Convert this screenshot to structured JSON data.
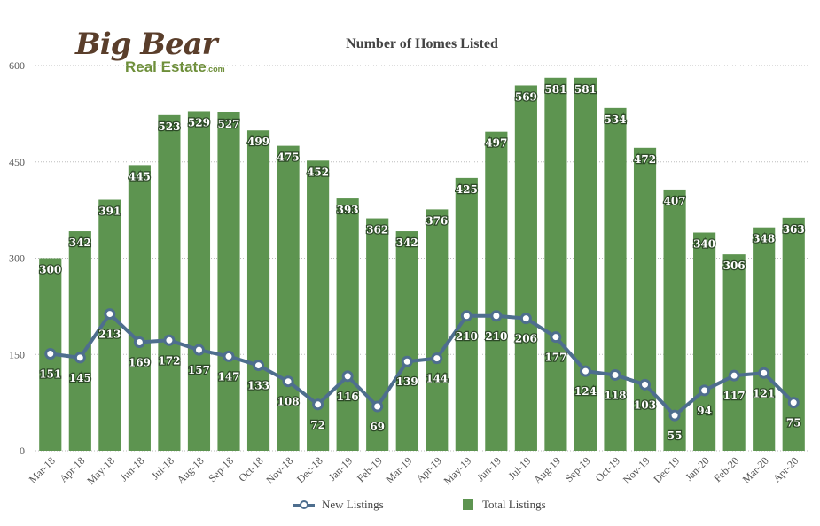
{
  "logo": {
    "script": "Big Bear",
    "sub": "Real Estate",
    "suffix": ".com"
  },
  "chart_data": {
    "type": "bar",
    "title": "Number of Homes Listed",
    "categories": [
      "Mar-18",
      "Apr-18",
      "May-18",
      "Jun-18",
      "Jul-18",
      "Aug-18",
      "Sep-18",
      "Oct-18",
      "Nov-18",
      "Dec-18",
      "Jan-19",
      "Feb-19",
      "Mar-19",
      "Apr-19",
      "May-19",
      "Jun-19",
      "Jul-19",
      "Aug-19",
      "Sep-19",
      "Oct-19",
      "Nov-19",
      "Dec-19",
      "Jan-20",
      "Feb-20",
      "Mar-20",
      "Apr-20"
    ],
    "series": [
      {
        "name": "Total Listings",
        "type": "bar",
        "color": "#5d9450",
        "values": [
          300,
          342,
          391,
          445,
          523,
          529,
          527,
          499,
          475,
          452,
          393,
          362,
          342,
          376,
          425,
          497,
          569,
          581,
          581,
          534,
          472,
          407,
          340,
          306,
          348,
          363
        ]
      },
      {
        "name": "New Listings",
        "type": "line",
        "color": "#4e6e8e",
        "values": [
          151,
          145,
          213,
          169,
          172,
          157,
          147,
          133,
          108,
          72,
          116,
          69,
          139,
          144,
          210,
          210,
          206,
          177,
          124,
          118,
          103,
          55,
          94,
          117,
          121,
          75
        ]
      }
    ],
    "yticks": [
      0,
      150,
      300,
      450,
      600
    ],
    "ylim": [
      0,
      600
    ],
    "grid": true,
    "legend": "bottom"
  }
}
